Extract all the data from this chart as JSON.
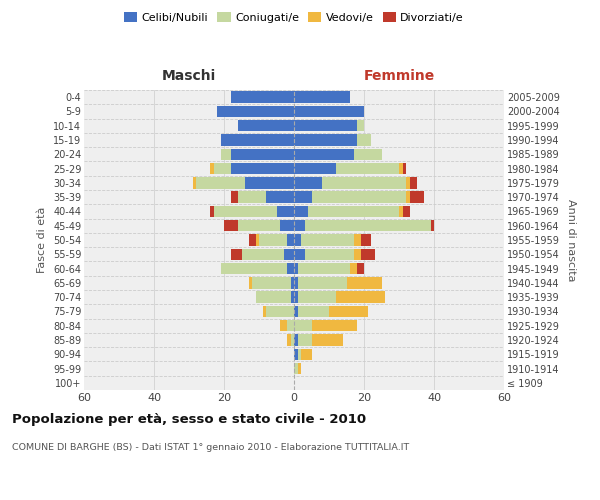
{
  "age_groups": [
    "100+",
    "95-99",
    "90-94",
    "85-89",
    "80-84",
    "75-79",
    "70-74",
    "65-69",
    "60-64",
    "55-59",
    "50-54",
    "45-49",
    "40-44",
    "35-39",
    "30-34",
    "25-29",
    "20-24",
    "15-19",
    "10-14",
    "5-9",
    "0-4"
  ],
  "birth_years": [
    "≤ 1909",
    "1910-1914",
    "1915-1919",
    "1920-1924",
    "1925-1929",
    "1930-1934",
    "1935-1939",
    "1940-1944",
    "1945-1949",
    "1950-1954",
    "1955-1959",
    "1960-1964",
    "1965-1969",
    "1970-1974",
    "1975-1979",
    "1980-1984",
    "1985-1989",
    "1990-1994",
    "1995-1999",
    "2000-2004",
    "2005-2009"
  ],
  "maschi": {
    "celibi": [
      0,
      0,
      0,
      0,
      0,
      0,
      1,
      1,
      2,
      3,
      2,
      4,
      5,
      8,
      14,
      18,
      18,
      21,
      16,
      22,
      18
    ],
    "coniugati": [
      0,
      0,
      0,
      1,
      2,
      8,
      10,
      11,
      19,
      12,
      8,
      12,
      18,
      8,
      14,
      5,
      3,
      0,
      0,
      0,
      0
    ],
    "vedovi": [
      0,
      0,
      0,
      1,
      2,
      1,
      0,
      1,
      0,
      0,
      1,
      0,
      0,
      0,
      1,
      1,
      0,
      0,
      0,
      0,
      0
    ],
    "divorziati": [
      0,
      0,
      0,
      0,
      0,
      0,
      0,
      0,
      0,
      3,
      2,
      4,
      1,
      2,
      0,
      0,
      0,
      0,
      0,
      0,
      0
    ]
  },
  "femmine": {
    "nubili": [
      0,
      0,
      1,
      1,
      0,
      1,
      1,
      1,
      1,
      3,
      2,
      3,
      4,
      5,
      8,
      12,
      17,
      18,
      18,
      20,
      16
    ],
    "coniugate": [
      0,
      1,
      1,
      4,
      5,
      9,
      11,
      14,
      15,
      14,
      15,
      36,
      26,
      27,
      24,
      18,
      8,
      4,
      2,
      0,
      0
    ],
    "vedove": [
      0,
      1,
      3,
      9,
      13,
      11,
      14,
      10,
      2,
      2,
      2,
      0,
      1,
      1,
      1,
      1,
      0,
      0,
      0,
      0,
      0
    ],
    "divorziate": [
      0,
      0,
      0,
      0,
      0,
      0,
      0,
      0,
      2,
      4,
      3,
      1,
      2,
      4,
      2,
      1,
      0,
      0,
      0,
      0,
      0
    ]
  },
  "colors": {
    "celibi": "#4472C4",
    "coniugati": "#C5D8A0",
    "vedovi": "#F0B840",
    "divorziati": "#C0392B"
  },
  "xlim": 60,
  "title": "Popolazione per età, sesso e stato civile - 2010",
  "subtitle": "COMUNE DI BARGHE (BS) - Dati ISTAT 1° gennaio 2010 - Elaborazione TUTTITALIA.IT",
  "ylabel_left": "Fasce di età",
  "ylabel_right": "Anni di nascita",
  "xlabel_left": "Maschi",
  "xlabel_right": "Femmine",
  "bg_color": "#ffffff",
  "plot_bg_color": "#efefef"
}
